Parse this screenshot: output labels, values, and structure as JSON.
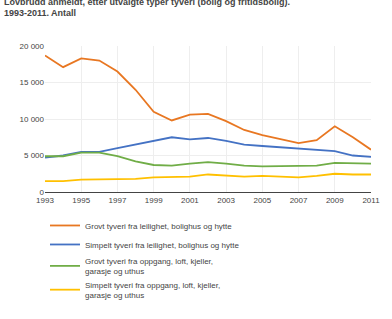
{
  "chart_data": {
    "type": "line",
    "title": "Lovbrudd anmeldt, etter utvalgte typer tyveri (bolig og fritidsbolig).",
    "subtitle": "1993-2011. Antall",
    "x": [
      1993,
      1994,
      1995,
      1996,
      1997,
      1998,
      1999,
      2000,
      2001,
      2002,
      2003,
      2004,
      2005,
      2006,
      2007,
      2008,
      2009,
      2010,
      2011
    ],
    "series": [
      {
        "name": "Grovt tyveri fra leilighet, bolighus og hytte",
        "color": "#E87722",
        "values": [
          18700,
          17100,
          18300,
          18000,
          16500,
          14000,
          11000,
          9800,
          10600,
          10700,
          9700,
          8500,
          7800,
          7200,
          6700,
          7100,
          9000,
          7500,
          5800
        ]
      },
      {
        "name": "Simpelt tyveri fra leilighet, bolighus og hytte",
        "color": "#4472C4",
        "values": [
          4700,
          5000,
          5500,
          5500,
          6000,
          6500,
          7000,
          7500,
          7200,
          7400,
          7000,
          6500,
          6300,
          6100,
          6000,
          5800,
          5600,
          5000,
          4800
        ]
      },
      {
        "name": "Grovt tyveri fra oppgang, loft, kjeller,\ngarasje og uthus",
        "color": "#70AD47",
        "values": [
          4900,
          4900,
          5400,
          5400,
          4900,
          4200,
          3700,
          3600,
          3900,
          4100,
          3900,
          3600,
          3500,
          3500,
          3500,
          3600,
          4000,
          3900,
          3900
        ]
      },
      {
        "name": "Simpelt tyveri fra oppgang, loft, kjeller,\ngarasje og uthus",
        "color": "#FFC000",
        "values": [
          1500,
          1500,
          1700,
          1700,
          1700,
          1800,
          2000,
          2100,
          2100,
          2400,
          2200,
          2100,
          2200,
          2100,
          2000,
          2200,
          2500,
          2400,
          2400
        ]
      }
    ],
    "xlim": [
      1993,
      2011
    ],
    "xticks": [
      1993,
      1995,
      1997,
      1999,
      2001,
      2003,
      2005,
      2007,
      2009,
      2011
    ],
    "ylim": [
      0,
      20000
    ],
    "yticks": [
      0,
      {
        "value": 5000,
        "label": "5 000"
      },
      {
        "value": 10000,
        "label": "10 000"
      },
      {
        "value": 15000,
        "label": "15 000"
      },
      {
        "value": 20000,
        "label": "20 000"
      }
    ],
    "grid": true,
    "legend": "bottom"
  }
}
